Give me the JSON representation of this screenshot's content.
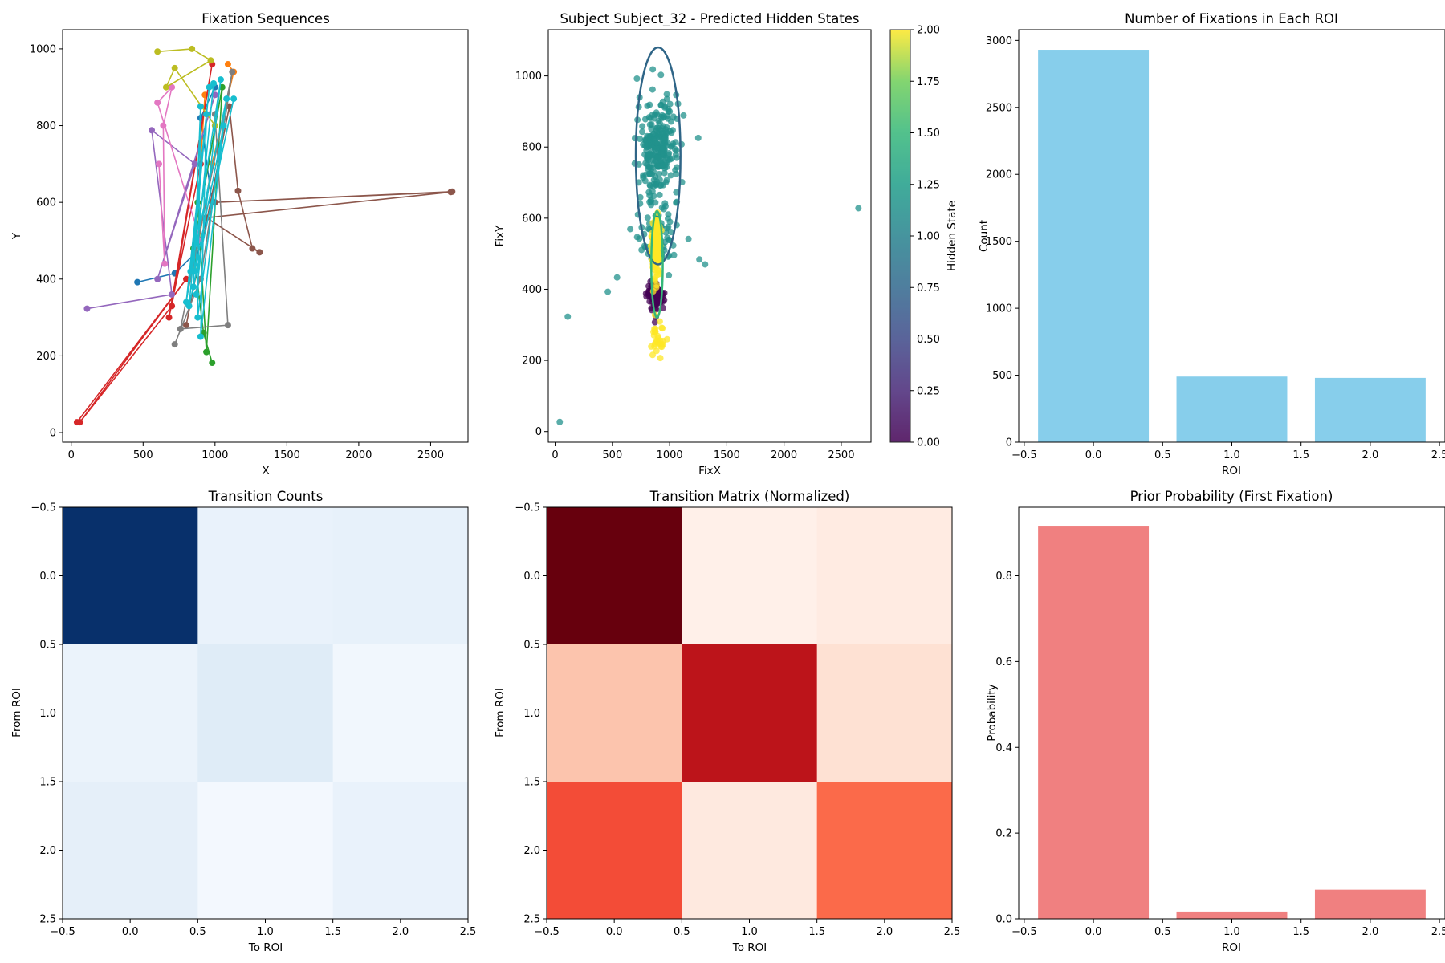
{
  "colors": {
    "tab10": [
      "#1f77b4",
      "#ff7f0e",
      "#2ca02c",
      "#d62728",
      "#9467bd",
      "#8c564b",
      "#e377c2",
      "#7f7f7f",
      "#bcbd22",
      "#17becf"
    ],
    "viridis": [
      "#440154",
      "#21918c",
      "#fde725"
    ],
    "roi_bar": "#87ceeb",
    "prior_bar": "#f08080",
    "ellipse": "#2f6587"
  },
  "chart_data": [
    {
      "type": "line",
      "title": "Fixation Sequences",
      "xlabel": "X",
      "ylabel": "Y",
      "xlim": [
        -60,
        2760
      ],
      "ylim": [
        -25,
        1050
      ],
      "xticks": [
        "0",
        "500",
        "1000",
        "1500",
        "2000",
        "2500"
      ],
      "yticks": [
        "0",
        "200",
        "400",
        "600",
        "800",
        "1000"
      ],
      "grid": false,
      "series": [
        {
          "values": [
            [
              460,
              392
            ],
            [
              720,
              415
            ],
            [
              870,
              470
            ],
            [
              980,
              600
            ],
            [
              900,
              820
            ],
            [
              1000,
              900
            ]
          ]
        },
        {
          "values": [
            [
              1090,
              960
            ],
            [
              1130,
              940
            ],
            [
              980,
              700
            ],
            [
              850,
              420
            ],
            [
              930,
              880
            ]
          ]
        },
        {
          "values": [
            [
              980,
              182
            ],
            [
              920,
              260
            ],
            [
              850,
              480
            ],
            [
              1050,
              900
            ],
            [
              940,
              210
            ],
            [
              880,
              600
            ]
          ]
        },
        {
          "values": [
            [
              40,
              27
            ],
            [
              800,
              400
            ],
            [
              60,
              27
            ],
            [
              700,
              330
            ],
            [
              980,
              960
            ],
            [
              680,
              300
            ],
            [
              900,
              700
            ]
          ]
        },
        {
          "values": [
            [
              110,
              323
            ],
            [
              700,
              360
            ],
            [
              560,
              788
            ],
            [
              860,
              700
            ],
            [
              600,
              400
            ],
            [
              1000,
              880
            ]
          ]
        },
        {
          "values": [
            [
              2650,
              628
            ],
            [
              1000,
              600
            ],
            [
              2640,
              627
            ],
            [
              940,
              560
            ],
            [
              1310,
              470
            ],
            [
              1260,
              480
            ],
            [
              1160,
              630
            ],
            [
              1100,
              850
            ],
            [
              800,
              280
            ]
          ]
        },
        {
          "values": [
            [
              610,
              700
            ],
            [
              650,
              440
            ],
            [
              640,
              800
            ],
            [
              700,
              900
            ],
            [
              600,
              860
            ],
            [
              900,
              500
            ]
          ]
        },
        {
          "values": [
            [
              720,
              230
            ],
            [
              900,
              400
            ],
            [
              1120,
              940
            ],
            [
              760,
              270
            ],
            [
              1090,
              280
            ],
            [
              1000,
              830
            ]
          ]
        },
        {
          "values": [
            [
              600,
              993
            ],
            [
              840,
              1000
            ],
            [
              970,
              970
            ],
            [
              660,
              900
            ],
            [
              720,
              950
            ],
            [
              1000,
              800
            ]
          ]
        },
        {
          "values": [
            [
              870,
              360
            ],
            [
              1040,
              920
            ],
            [
              800,
              340
            ],
            [
              960,
              900
            ],
            [
              830,
              420
            ],
            [
              1080,
              870
            ],
            [
              880,
              300
            ],
            [
              900,
              850
            ],
            [
              850,
              380
            ],
            [
              1130,
              870
            ],
            [
              820,
              330
            ],
            [
              940,
              830
            ],
            [
              900,
              250
            ],
            [
              1060,
              800
            ],
            [
              860,
              420
            ],
            [
              990,
              910
            ]
          ]
        }
      ]
    },
    {
      "type": "scatter",
      "title": "Subject Subject_32 - Predicted Hidden States",
      "xlabel": "FixX",
      "ylabel": "FixY",
      "xlim": [
        -60,
        2760
      ],
      "ylim": [
        -30,
        1130
      ],
      "xticks": [
        "0",
        "500",
        "1000",
        "1500",
        "2000",
        "2500"
      ],
      "yticks": [
        "0",
        "200",
        "400",
        "600",
        "800",
        "1000"
      ],
      "colorbar": {
        "label": "Hidden State",
        "range": [
          0,
          2
        ],
        "ticks": [
          "0.00",
          "0.25",
          "0.50",
          "0.75",
          "1.00",
          "1.25",
          "1.50",
          "1.75",
          "2.00"
        ]
      },
      "clusters": [
        {
          "state": 1,
          "count": 260,
          "center": [
            900,
            800
          ],
          "spread": [
            150,
            110
          ]
        },
        {
          "state": 1,
          "count": 90,
          "center": [
            900,
            550
          ],
          "spread": [
            140,
            80
          ]
        },
        {
          "state": 2,
          "count": 140,
          "center": [
            880,
            520
          ],
          "spread": [
            30,
            80
          ]
        },
        {
          "state": 2,
          "count": 30,
          "center": [
            900,
            260
          ],
          "spread": [
            50,
            40
          ]
        },
        {
          "state": 0,
          "count": 120,
          "center": [
            880,
            380
          ],
          "spread": [
            60,
            30
          ]
        }
      ],
      "outliers": [
        {
          "state": 1,
          "x": 40,
          "y": 27
        },
        {
          "state": 1,
          "x": 110,
          "y": 323
        },
        {
          "state": 1,
          "x": 460,
          "y": 393
        },
        {
          "state": 1,
          "x": 2650,
          "y": 628
        },
        {
          "state": 1,
          "x": 1260,
          "y": 484
        },
        {
          "state": 1,
          "x": 1310,
          "y": 470
        }
      ],
      "ellipses": [
        {
          "center": [
            900,
            775
          ],
          "radii": [
            195,
            305
          ],
          "color": "#2f6587"
        },
        {
          "center": [
            890,
            470
          ],
          "radii": [
            50,
            150
          ],
          "color": "#35b779"
        }
      ]
    },
    {
      "type": "bar",
      "title": "Number of Fixations in Each ROI",
      "xlabel": "ROI",
      "ylabel": "Count",
      "xlim": [
        -0.54,
        2.54
      ],
      "ylim": [
        0,
        3080
      ],
      "xticks": [
        "−0.5",
        "0.0",
        "0.5",
        "1.0",
        "1.5",
        "2.0",
        "2.5"
      ],
      "yticks": [
        "0",
        "500",
        "1000",
        "1500",
        "2000",
        "2500",
        "3000"
      ],
      "categories": [
        0,
        1,
        2
      ],
      "values": [
        2930,
        490,
        480
      ]
    },
    {
      "type": "heatmap",
      "title": "Transition Counts",
      "xlabel": "To ROI",
      "ylabel": "From ROI",
      "colormap": "Blues",
      "xticks": [
        "−0.5",
        "0.0",
        "0.5",
        "1.0",
        "1.5",
        "2.0",
        "2.5"
      ],
      "yticks": [
        "−0.5",
        "0.0",
        "0.5",
        "1.0",
        "1.5",
        "2.0",
        "2.5"
      ],
      "matrix": [
        [
          1.0,
          0.07,
          0.08
        ],
        [
          0.06,
          0.12,
          0.03
        ],
        [
          0.09,
          0.02,
          0.07
        ]
      ]
    },
    {
      "type": "heatmap",
      "title": "Transition Matrix (Normalized)",
      "xlabel": "To ROI",
      "ylabel": "From ROI",
      "colormap": "Reds",
      "xticks": [
        "−0.5",
        "0.0",
        "0.5",
        "1.0",
        "1.5",
        "2.0",
        "2.5"
      ],
      "yticks": [
        "−0.5",
        "0.0",
        "0.5",
        "1.0",
        "1.5",
        "2.0",
        "2.5"
      ],
      "matrix": [
        [
          1.0,
          0.03,
          0.06
        ],
        [
          0.22,
          0.8,
          0.12
        ],
        [
          0.58,
          0.07,
          0.5
        ]
      ]
    },
    {
      "type": "bar",
      "title": "Prior Probability (First Fixation)",
      "xlabel": "ROI",
      "ylabel": "Probability",
      "xlim": [
        -0.54,
        2.54
      ],
      "ylim": [
        0,
        0.96
      ],
      "xticks": [
        "−0.5",
        "0.0",
        "0.5",
        "1.0",
        "1.5",
        "2.0",
        "2.5"
      ],
      "yticks": [
        "0.0",
        "0.2",
        "0.4",
        "0.6",
        "0.8"
      ],
      "categories": [
        0,
        1,
        2
      ],
      "values": [
        0.915,
        0.017,
        0.068
      ]
    }
  ]
}
